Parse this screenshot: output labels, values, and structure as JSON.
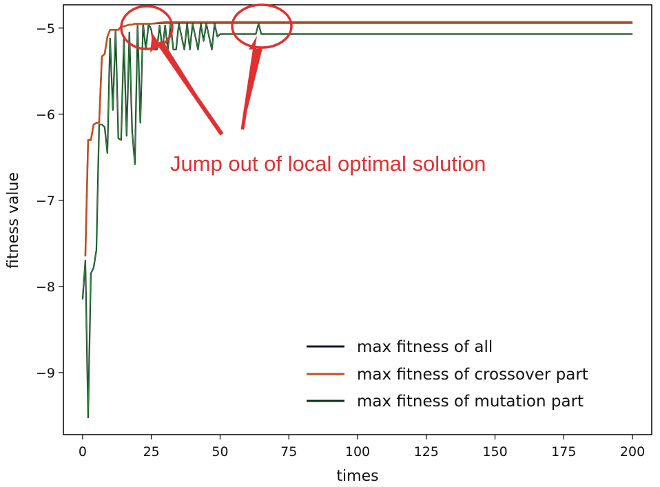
{
  "chart_data": {
    "type": "line",
    "title": "",
    "xlabel": "times",
    "ylabel": "fitness value",
    "xlim": [
      -7,
      207
    ],
    "ylim": [
      -9.72,
      -4.73
    ],
    "xticks": [
      0,
      25,
      50,
      75,
      100,
      125,
      150,
      175,
      200
    ],
    "yticks": [
      -5,
      -6,
      -7,
      -8,
      -9
    ],
    "xtick_labels": [
      "0",
      "25",
      "50",
      "75",
      "100",
      "125",
      "150",
      "175",
      "200"
    ],
    "ytick_labels": [
      "−5",
      "−6",
      "−7",
      "−8",
      "−9"
    ],
    "grid": false,
    "legend_position": "lower-right",
    "annotation": {
      "text": "Jump out of local optimal solution",
      "color": "#e03030",
      "circles_at": [
        [
          22,
          -4.95
        ],
        [
          65,
          -4.95
        ]
      ]
    },
    "series": [
      {
        "name": "max fitness of all",
        "color": "#0d1b2a",
        "x": [
          1,
          2,
          3,
          4,
          5,
          6,
          7,
          8,
          9,
          10,
          11,
          12,
          13,
          14,
          15,
          16,
          17,
          18,
          19,
          20,
          21,
          22,
          23,
          24,
          25,
          30,
          200
        ],
        "y": [
          -7.65,
          -6.3,
          -6.3,
          -6.12,
          -6.1,
          -6.1,
          -5.33,
          -5.3,
          -5.1,
          -5.02,
          -5.02,
          -5.02,
          -5.02,
          -4.98,
          -4.98,
          -4.97,
          -4.96,
          -4.96,
          -4.95,
          -4.95,
          -4.95,
          -4.95,
          -4.95,
          -4.95,
          -4.95,
          -4.94,
          -4.94
        ]
      },
      {
        "name": "max fitness of crossover part",
        "color": "#c0501f",
        "x": [
          1,
          2,
          3,
          4,
          5,
          6,
          7,
          8,
          9,
          10,
          11,
          12,
          13,
          14,
          15,
          16,
          17,
          18,
          19,
          20,
          21,
          22,
          23,
          24,
          25,
          30,
          200
        ],
        "y": [
          -7.65,
          -6.3,
          -6.3,
          -6.12,
          -6.1,
          -6.1,
          -5.33,
          -5.3,
          -5.1,
          -5.02,
          -5.02,
          -5.02,
          -5.02,
          -4.98,
          -4.98,
          -4.97,
          -4.96,
          -4.96,
          -4.95,
          -4.95,
          -4.95,
          -4.95,
          -4.95,
          -4.95,
          -4.95,
          -4.93,
          -4.93
        ]
      },
      {
        "name": "max fitness of mutation part",
        "color": "#0b2b14",
        "x": [
          0,
          1,
          2,
          3,
          4,
          5,
          6,
          7,
          8,
          9,
          10,
          11,
          12,
          13,
          14,
          15,
          16,
          17,
          18,
          19,
          20,
          21,
          22,
          23,
          24,
          25,
          26,
          27,
          28,
          29,
          30,
          31,
          32,
          33,
          34,
          35,
          36,
          37,
          38,
          39,
          40,
          41,
          42,
          43,
          44,
          45,
          46,
          47,
          48,
          49,
          50,
          51,
          60,
          63,
          64,
          65,
          66,
          67,
          200
        ],
        "y": [
          -8.15,
          -7.7,
          -9.52,
          -7.85,
          -7.78,
          -7.58,
          -6.12,
          -6.12,
          -6.15,
          -6.45,
          -5.12,
          -5.95,
          -5.02,
          -6.28,
          -6.3,
          -5.12,
          -6.25,
          -5.05,
          -6.2,
          -6.58,
          -4.95,
          -6.1,
          -4.95,
          -5.25,
          -4.95,
          -5.02,
          -5.25,
          -5.25,
          -4.97,
          -5.25,
          -4.97,
          -5.25,
          -4.95,
          -5.25,
          -5.25,
          -4.95,
          -5.1,
          -5.25,
          -4.95,
          -5.25,
          -4.95,
          -5.1,
          -5.25,
          -4.95,
          -5.15,
          -4.95,
          -5.1,
          -5.25,
          -4.95,
          -5.1,
          -5.07,
          -5.07,
          -5.07,
          -5.07,
          -4.95,
          -5.07,
          -5.07,
          -5.07,
          -5.07
        ]
      }
    ]
  }
}
